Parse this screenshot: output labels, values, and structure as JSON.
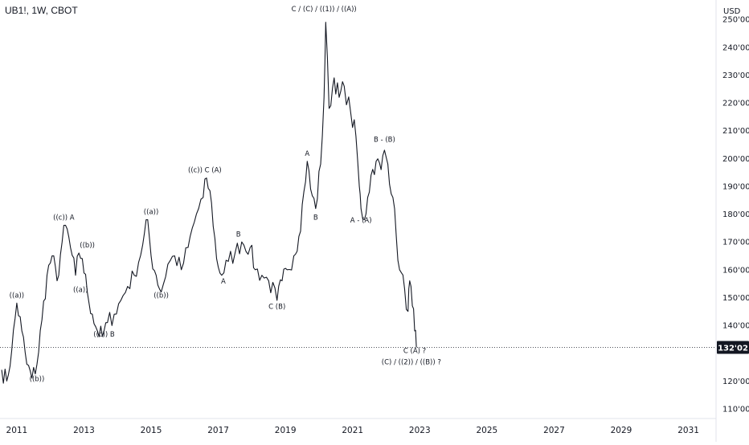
{
  "header": {
    "symbol_title": "UB1!, 1W, CBOT"
  },
  "currency_label": "USD",
  "last_price_label": "132'02",
  "colors": {
    "price_line": "#131722",
    "axis_text": "#131722",
    "last_price_bg": "#131722",
    "last_price_text": "#ffffff",
    "axis_border": "#e0e3eb",
    "guide_line": "#131722"
  },
  "chart_data": {
    "type": "line",
    "title": "UB1!, 1W, CBOT",
    "xlabel": "",
    "ylabel": "USD",
    "xlim": [
      2010.5,
      2031.8
    ],
    "ylim": [
      106.5,
      257
    ],
    "last_price": 132.06,
    "x_ticks": [
      "2011",
      "2013",
      "2015",
      "2017",
      "2019",
      "2021",
      "2023",
      "2025",
      "2027",
      "2029",
      "2031"
    ],
    "y_ticks": [
      "250'00",
      "240'00",
      "230'00",
      "220'00",
      "210'00",
      "200'00",
      "190'00",
      "180'00",
      "170'00",
      "160'00",
      "150'00",
      "140'00",
      "120'00",
      "110'00"
    ],
    "series": [
      {
        "values": [
          [
            2010.55,
            124
          ],
          [
            2010.7,
            120
          ],
          [
            2010.85,
            131
          ],
          [
            2011.0,
            148
          ],
          [
            2011.15,
            138
          ],
          [
            2011.3,
            126
          ],
          [
            2011.45,
            121
          ],
          [
            2011.6,
            126
          ],
          [
            2011.75,
            142
          ],
          [
            2011.9,
            158
          ],
          [
            2012.05,
            165
          ],
          [
            2012.2,
            156
          ],
          [
            2012.35,
            170
          ],
          [
            2012.45,
            176
          ],
          [
            2012.6,
            168
          ],
          [
            2012.75,
            158
          ],
          [
            2012.85,
            166
          ],
          [
            2012.95,
            164
          ],
          [
            2013.1,
            152
          ],
          [
            2013.25,
            144
          ],
          [
            2013.4,
            138
          ],
          [
            2013.55,
            136
          ],
          [
            2013.7,
            141
          ],
          [
            2013.9,
            144
          ],
          [
            2014.1,
            149
          ],
          [
            2014.3,
            154
          ],
          [
            2014.5,
            158
          ],
          [
            2014.75,
            169
          ],
          [
            2014.9,
            178
          ],
          [
            2015.0,
            165
          ],
          [
            2015.15,
            158
          ],
          [
            2015.3,
            152
          ],
          [
            2015.5,
            162
          ],
          [
            2015.7,
            165
          ],
          [
            2015.9,
            160
          ],
          [
            2016.1,
            168
          ],
          [
            2016.35,
            180
          ],
          [
            2016.55,
            186
          ],
          [
            2016.65,
            193
          ],
          [
            2016.8,
            184
          ],
          [
            2016.95,
            164
          ],
          [
            2017.1,
            158
          ],
          [
            2017.3,
            163
          ],
          [
            2017.5,
            166
          ],
          [
            2017.7,
            170
          ],
          [
            2017.95,
            168
          ],
          [
            2018.1,
            160
          ],
          [
            2018.3,
            158
          ],
          [
            2018.5,
            156
          ],
          [
            2018.75,
            149
          ],
          [
            2018.9,
            156
          ],
          [
            2019.05,
            160
          ],
          [
            2019.25,
            165
          ],
          [
            2019.4,
            172
          ],
          [
            2019.55,
            188
          ],
          [
            2019.65,
            199
          ],
          [
            2019.75,
            189
          ],
          [
            2019.9,
            182
          ],
          [
            2020.05,
            198
          ],
          [
            2020.15,
            222
          ],
          [
            2020.2,
            249
          ],
          [
            2020.3,
            218
          ],
          [
            2020.45,
            229
          ],
          [
            2020.6,
            222
          ],
          [
            2020.75,
            226
          ],
          [
            2020.95,
            216
          ],
          [
            2021.1,
            208
          ],
          [
            2021.2,
            190
          ],
          [
            2021.25,
            182
          ],
          [
            2021.35,
            178
          ],
          [
            2021.45,
            186
          ],
          [
            2021.55,
            194
          ],
          [
            2021.7,
            199
          ],
          [
            2021.85,
            196
          ],
          [
            2021.95,
            203
          ],
          [
            2022.05,
            198
          ],
          [
            2022.2,
            186
          ],
          [
            2022.3,
            172
          ],
          [
            2022.4,
            160
          ],
          [
            2022.55,
            153
          ],
          [
            2022.65,
            145
          ],
          [
            2022.7,
            156
          ],
          [
            2022.78,
            147
          ],
          [
            2022.85,
            138
          ],
          [
            2022.9,
            132.06
          ]
        ]
      }
    ],
    "annotations": [
      {
        "text": "((a))",
        "x": 2011.0,
        "y": 150
      },
      {
        "text": "((b))",
        "x": 2011.6,
        "y": 120
      },
      {
        "text": "((c)) A",
        "x": 2012.4,
        "y": 178
      },
      {
        "text": "((b))",
        "x": 2013.1,
        "y": 168
      },
      {
        "text": "((a))",
        "x": 2012.9,
        "y": 152
      },
      {
        "text": "((c)) B",
        "x": 2013.6,
        "y": 136
      },
      {
        "text": "((a))",
        "x": 2015.0,
        "y": 180
      },
      {
        "text": "((b))",
        "x": 2015.3,
        "y": 150
      },
      {
        "text": "((c)) C (A)",
        "x": 2016.6,
        "y": 195
      },
      {
        "text": "B",
        "x": 2017.6,
        "y": 172
      },
      {
        "text": "A",
        "x": 2017.15,
        "y": 155
      },
      {
        "text": "C (B)",
        "x": 2018.75,
        "y": 146
      },
      {
        "text": "A",
        "x": 2019.65,
        "y": 201
      },
      {
        "text": "B",
        "x": 2019.9,
        "y": 178
      },
      {
        "text": "C / (C) / ((1)) / ((A))",
        "x": 2020.15,
        "y": 253
      },
      {
        "text": "A - (A)",
        "x": 2021.25,
        "y": 177
      },
      {
        "text": "B - (B)",
        "x": 2021.95,
        "y": 206
      },
      {
        "text": "C (A) ?",
        "x": 2022.85,
        "y": 130
      },
      {
        "text": "(C) / ((2)) / ((B)) ?",
        "x": 2022.75,
        "y": 126
      }
    ]
  }
}
